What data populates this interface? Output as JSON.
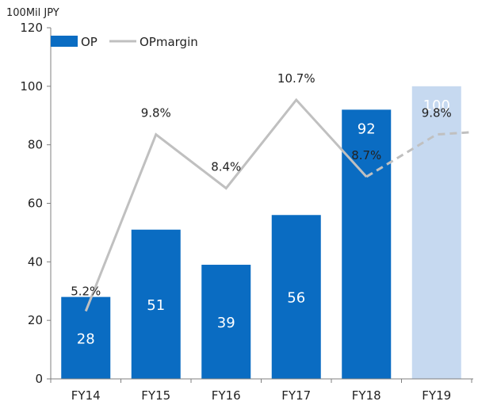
{
  "chart_data": {
    "type": "bar",
    "unit_label": "100Mil JPY",
    "categories": [
      "FY14",
      "FY15",
      "FY16",
      "FY17",
      "FY18",
      "FY19"
    ],
    "ylim": [
      0,
      120
    ],
    "yticks": [
      "0",
      "20",
      "40",
      "60",
      "80",
      "100",
      "120"
    ],
    "grid": false,
    "legend_position": "top-left",
    "series": [
      {
        "name": "OP",
        "kind": "bar",
        "values": [
          28,
          51,
          39,
          56,
          92,
          100
        ],
        "labels": [
          "28",
          "51",
          "39",
          "56",
          "92",
          "100"
        ],
        "color": "#0a6cc2",
        "forecast_color": "#c6d9f0",
        "forecast_from_index": 5
      },
      {
        "name": "OPmargin",
        "kind": "line",
        "values": [
          5.2,
          9.8,
          8.4,
          10.7,
          8.7,
          9.8
        ],
        "labels": [
          "5.2%",
          "9.8%",
          "8.4%",
          "10.7%",
          "8.7%",
          "9.8%"
        ],
        "color": "#c0c0c0",
        "dashed_from_index": 4
      }
    ]
  }
}
